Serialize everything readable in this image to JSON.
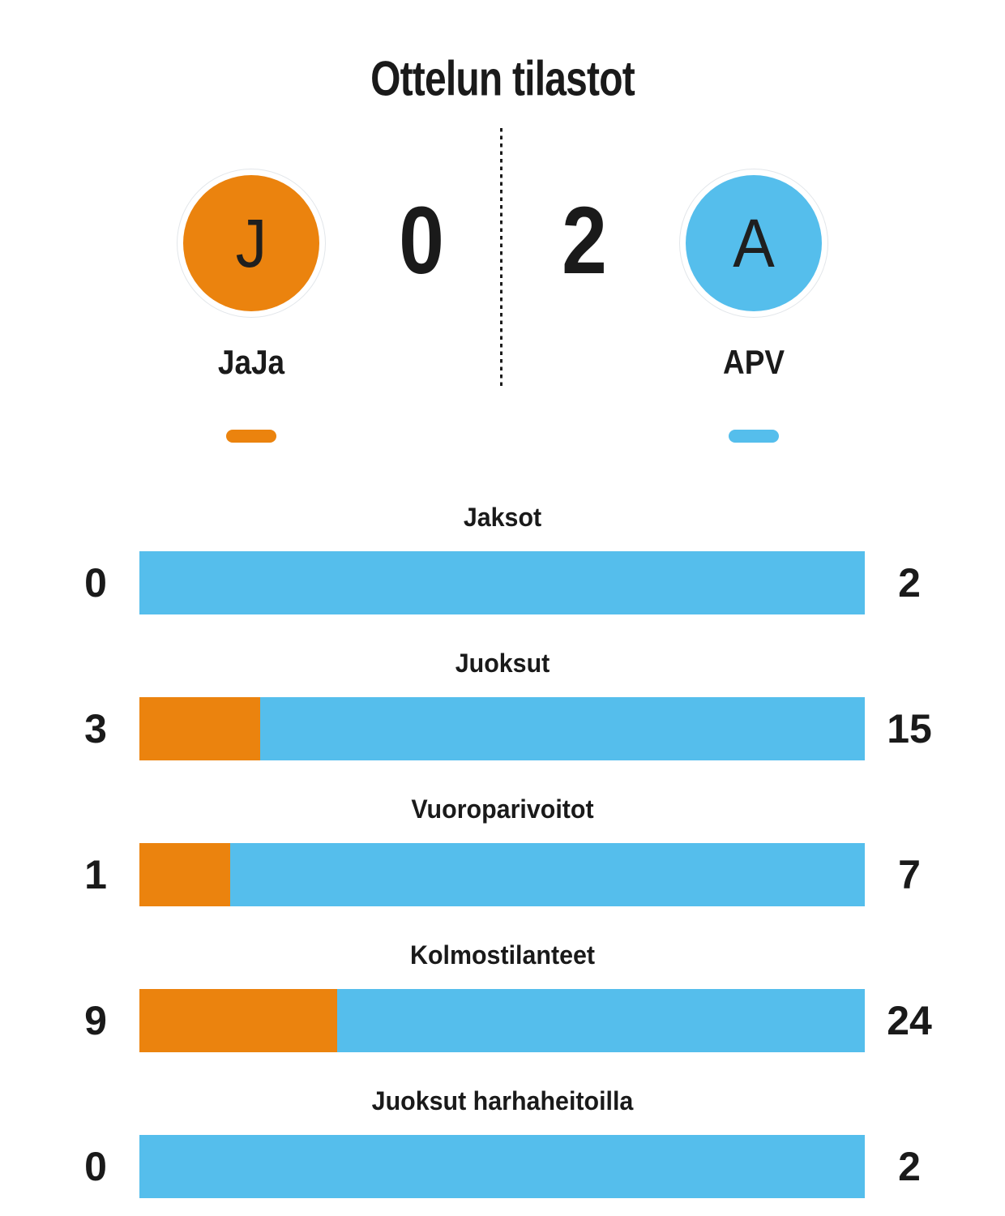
{
  "title": "Ottelun tilastot",
  "colors": {
    "home": "#eb830e",
    "away": "#55beec"
  },
  "scoreboard": {
    "home": {
      "initial": "J",
      "name": "JaJa",
      "score": "0"
    },
    "away": {
      "initial": "A",
      "name": "APV",
      "score": "2"
    }
  },
  "chart_data": {
    "type": "bar",
    "orientation": "horizontal-paired",
    "title": "Ottelun tilastot",
    "categories": [
      "Jaksot",
      "Juoksut",
      "Vuoroparivoitot",
      "Kolmostilanteet",
      "Juoksut harhaheitoilla"
    ],
    "series": [
      {
        "name": "JaJa",
        "color": "#eb830e",
        "values": [
          0,
          3,
          1,
          9,
          0
        ]
      },
      {
        "name": "APV",
        "color": "#55beec",
        "values": [
          2,
          15,
          7,
          24,
          2
        ]
      }
    ],
    "value_labels": "both-ends",
    "legend_position": "under-team-names",
    "grid": false
  }
}
